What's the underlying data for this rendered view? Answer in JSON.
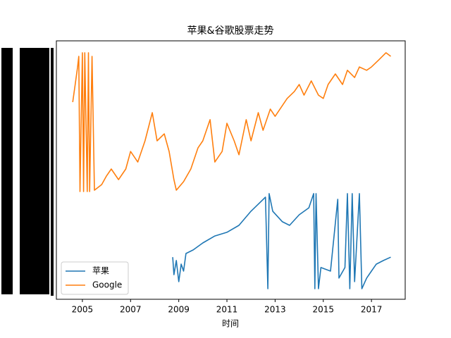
{
  "chart_data": {
    "type": "line",
    "title": "苹果&谷歌股票走势",
    "x_label": "时间",
    "xlim": [
      2003.92,
      2018.4
    ],
    "xticks": [
      2005,
      2007,
      2009,
      2011,
      2013,
      2015,
      2017
    ],
    "ylim": [
      0,
      100
    ],
    "legend": "lower left",
    "series": [
      {
        "name": "苹果",
        "color": "#1f77b4",
        "x": [
          2008.75,
          2008.8,
          2008.9,
          2009.0,
          2009.1,
          2009.2,
          2009.3,
          2009.6,
          2010.0,
          2010.5,
          2011.0,
          2011.5,
          2012.0,
          2012.3,
          2012.6,
          2012.7,
          2012.75,
          2012.9,
          2013.3,
          2013.6,
          2014.0,
          2014.4,
          2014.6,
          2014.65,
          2014.7,
          2014.8,
          2014.9,
          2015.3,
          2015.6,
          2015.65,
          2015.9,
          2016.0,
          2016.1,
          2016.2,
          2016.3,
          2016.5,
          2016.6,
          2016.8,
          2017.0,
          2017.2,
          2017.5,
          2017.8
        ],
        "values": [
          16.3,
          9.5,
          15.0,
          6.8,
          13.6,
          10.9,
          17.7,
          19.1,
          21.8,
          24.5,
          25.9,
          28.6,
          34.1,
          36.8,
          39.5,
          4.1,
          40.9,
          34.1,
          30.0,
          28.6,
          32.7,
          35.4,
          40.9,
          4.1,
          40.9,
          4.1,
          12.3,
          10.9,
          38.7,
          8.2,
          12.3,
          40.9,
          4.1,
          40.9,
          6.8,
          40.9,
          4.1,
          8.2,
          10.9,
          13.6,
          15.0,
          16.3
        ]
      },
      {
        "name": "Google",
        "color": "#ff7f0e",
        "x": [
          2004.6,
          2004.7,
          2004.8,
          2004.85,
          2004.9,
          2005.0,
          2005.05,
          2005.1,
          2005.2,
          2005.25,
          2005.3,
          2005.4,
          2005.5,
          2005.8,
          2006.0,
          2006.2,
          2006.5,
          2006.8,
          2007.0,
          2007.3,
          2007.6,
          2007.9,
          2008.1,
          2008.4,
          2008.6,
          2008.8,
          2008.9,
          2009.2,
          2009.5,
          2009.8,
          2010.0,
          2010.3,
          2010.5,
          2010.8,
          2011.0,
          2011.3,
          2011.5,
          2011.8,
          2012.0,
          2012.3,
          2012.5,
          2012.8,
          2013.0,
          2013.5,
          2013.8,
          2014.0,
          2014.2,
          2014.5,
          2014.8,
          2015.0,
          2015.2,
          2015.5,
          2015.8,
          2016.0,
          2016.3,
          2016.5,
          2016.8,
          2017.0,
          2017.3,
          2017.6,
          2017.8
        ],
        "values": [
          76.3,
          83.1,
          89.9,
          94.0,
          41.7,
          95.4,
          41.7,
          95.4,
          41.7,
          95.4,
          41.7,
          94.0,
          42.2,
          44.4,
          47.7,
          50.4,
          46.3,
          50.4,
          57.2,
          53.1,
          61.3,
          72.2,
          61.3,
          64.0,
          57.2,
          46.3,
          42.2,
          45.5,
          50.4,
          58.6,
          61.3,
          69.5,
          53.1,
          57.2,
          68.1,
          61.3,
          55.9,
          69.5,
          61.3,
          72.2,
          65.4,
          73.6,
          70.8,
          77.7,
          80.4,
          83.1,
          79.0,
          84.5,
          79.0,
          77.7,
          83.1,
          87.2,
          83.1,
          88.6,
          85.8,
          89.9,
          88.6,
          89.9,
          92.6,
          95.4,
          94.0
        ]
      }
    ]
  }
}
